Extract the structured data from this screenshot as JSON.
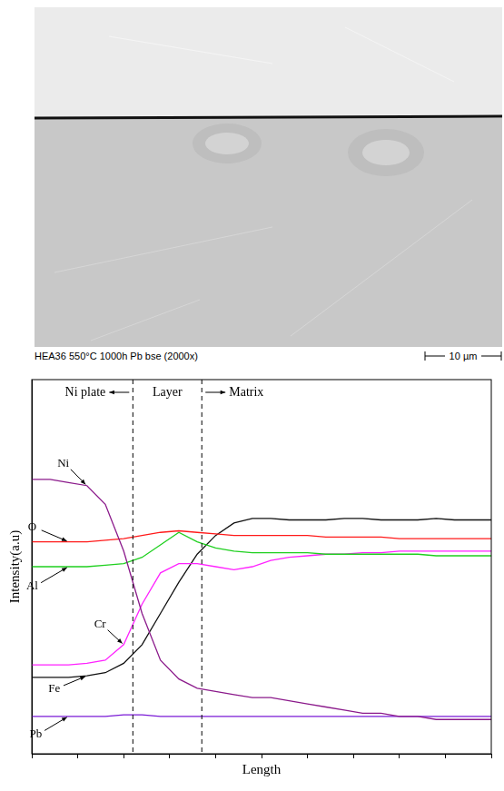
{
  "image": {
    "caption": "HEA36 550°C 1000h Pb bse (2000x)",
    "scale_bar": "10 µm"
  },
  "chart_data": {
    "type": "line",
    "x_label": "Length",
    "y_label": "Intensity(a.u)",
    "x": [
      0,
      4,
      8,
      12,
      16,
      20,
      24,
      28,
      32,
      36,
      40,
      44,
      48,
      52,
      56,
      60,
      64,
      68,
      72,
      76,
      80,
      84,
      88,
      92,
      96,
      100
    ],
    "series": [
      {
        "name": "Ni",
        "color": "#8b1a8b",
        "values": [
          88,
          88,
          87,
          86,
          80,
          65,
          45,
          30,
          24,
          21,
          20,
          19,
          18,
          18,
          17,
          16,
          15,
          14,
          13,
          13,
          12,
          12,
          11,
          11,
          11,
          11
        ]
      },
      {
        "name": "O",
        "color": "#ff1a1a",
        "values": [
          68,
          68,
          68,
          68,
          68.5,
          69,
          70,
          71,
          71.5,
          71,
          70.5,
          70,
          70,
          70,
          70,
          70,
          69.5,
          69.5,
          69.5,
          69.5,
          69,
          69,
          69,
          69,
          69,
          69
        ]
      },
      {
        "name": "Al",
        "color": "#1fd01f",
        "values": [
          60,
          60,
          60,
          60,
          60.5,
          61,
          63,
          67,
          71,
          68,
          66,
          65,
          64.5,
          64.5,
          64.5,
          64.5,
          64,
          64,
          64,
          64,
          64,
          64,
          63.5,
          63.5,
          63.5,
          63.5
        ]
      },
      {
        "name": "Cr",
        "color": "#ff22ff",
        "values": [
          28.5,
          28.5,
          28.5,
          29,
          30,
          35,
          48,
          58,
          61,
          61,
          60,
          59,
          60,
          62,
          63,
          63.5,
          64,
          64,
          64.5,
          64.5,
          65,
          65,
          65,
          65,
          65,
          65
        ]
      },
      {
        "name": "Fe",
        "color": "#111111",
        "values": [
          24.5,
          24.5,
          24.5,
          25,
          26,
          29,
          35,
          45,
          55,
          64,
          70,
          74,
          75.5,
          75.5,
          75,
          75,
          75,
          75.5,
          75.5,
          75,
          75,
          75,
          75.5,
          75,
          75,
          75
        ]
      },
      {
        "name": "Pb",
        "color": "#7a1ad6",
        "values": [
          12,
          12,
          12,
          12,
          12,
          12.5,
          12.5,
          12,
          12,
          12,
          12,
          12,
          12,
          12,
          12,
          12,
          12,
          12,
          12,
          12,
          12,
          12,
          12,
          12,
          12,
          12
        ]
      }
    ],
    "regions": [
      {
        "label": "Ni plate",
        "from": 0,
        "to": 22
      },
      {
        "label": "Layer",
        "from": 22,
        "to": 37
      },
      {
        "label": "Matrix",
        "from": 37,
        "to": 100
      }
    ],
    "xlim": [
      0,
      100
    ],
    "ylim": [
      0,
      120
    ],
    "xticks": [
      0,
      10,
      20,
      30,
      40,
      50,
      60,
      70,
      80,
      90,
      100
    ],
    "yticks": [],
    "tick_labels": false,
    "grid": false
  }
}
